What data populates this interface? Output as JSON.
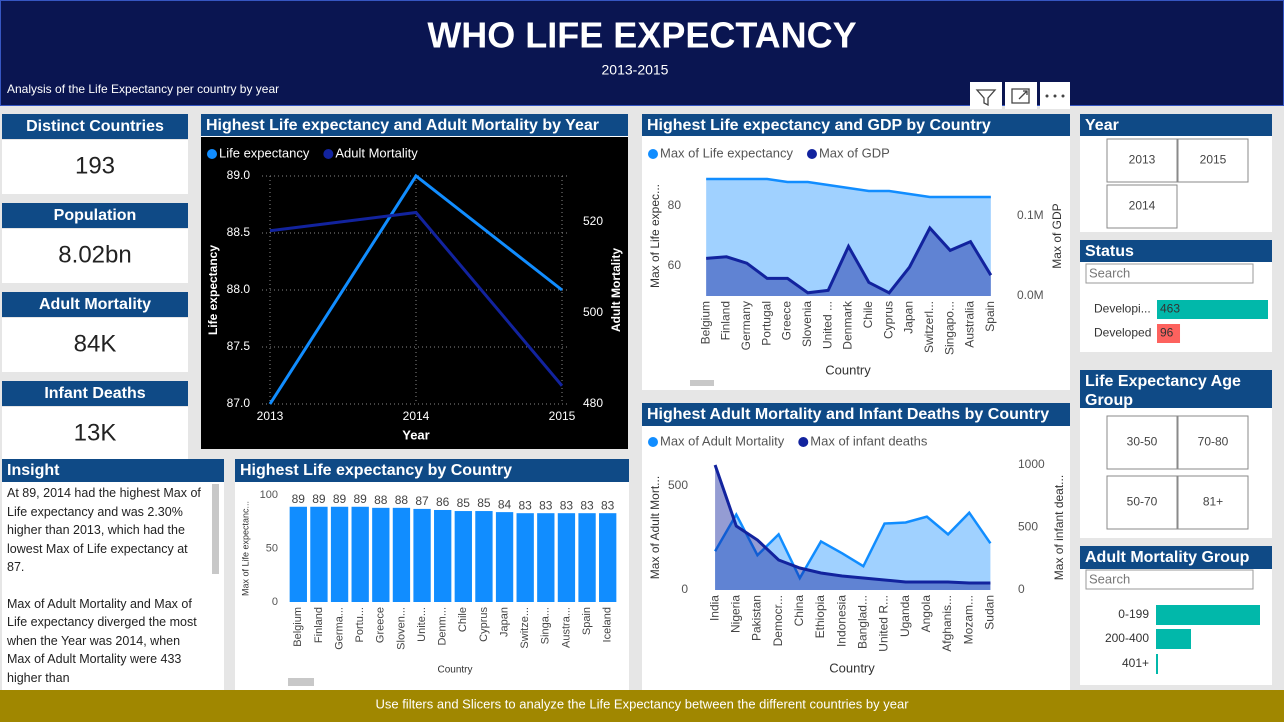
{
  "header": {
    "title": "WHO LIFE EXPECTANCY",
    "subtitle": "2013-2015",
    "description": "Analysis of the Life Expectancy per country by year"
  },
  "cards": [
    {
      "label": "Distinct Countries",
      "value": "193"
    },
    {
      "label": "Population",
      "value": "8.02bn"
    },
    {
      "label": "Adult Mortality",
      "value": "84K"
    },
    {
      "label": "Infant Deaths",
      "value": "13K"
    }
  ],
  "insight": {
    "title": "Insight",
    "paragraphs": [
      "At 89, 2014 had the highest Max of Life expectancy  and was 2.30% higher than 2013, which had the lowest Max of Life expectancy  at 87.",
      "Max of Adult Mortality and Max of Life expectancy diverged the most when the Year was 2014, when Max of Adult Mortality were 433 higher than"
    ]
  },
  "slicers": [
    {
      "title": "Year",
      "options": [
        "2013",
        "2015",
        "2014"
      ]
    },
    {
      "title": "Life Expectancy Age Group",
      "options": [
        "30-50",
        "70-80",
        "50-70",
        "81+"
      ]
    }
  ],
  "footer": "Use filters and Slicers to analyze the Life Expectancy between the different countries by year",
  "chart_data": [
    {
      "type": "line",
      "title": "Highest Life expectancy and Adult Mortality by Year",
      "categories": [
        "2013",
        "2014",
        "2015"
      ],
      "xlabel": "Year",
      "ylabel": "Life expectancy",
      "y2label": "Adult Mortality",
      "series": [
        {
          "name": "Life expectancy",
          "color": "#118dff",
          "values": [
            87.0,
            89.0,
            88.0
          ]
        },
        {
          "name": "Adult Mortality",
          "color": "#12239e",
          "axis": "y2",
          "values": [
            518,
            522,
            484
          ]
        }
      ],
      "ylim": [
        87,
        89
      ],
      "yticks": [
        {
          "value": 87,
          "label": "87.0"
        },
        {
          "value": 87.5,
          "label": "87.5"
        },
        {
          "value": 88,
          "label": "88.0"
        },
        {
          "value": 88.5,
          "label": "88.5"
        },
        {
          "value": 89,
          "label": "89.0"
        }
      ],
      "y2lim": [
        480,
        530
      ],
      "y2ticks": [
        480,
        500,
        520
      ],
      "grid": true,
      "legend": "top-left"
    },
    {
      "type": "area",
      "title": "Highest Life expectancy and GDP by Country",
      "categories": [
        "Belgium",
        "Finland",
        "Germany",
        "Portugal",
        "Greece",
        "Slovenia",
        "United ...",
        "Denmark",
        "Chile",
        "Cyprus",
        "Japan",
        "Switzerl...",
        "Singapo...",
        "Australia",
        "Spain"
      ],
      "xlabel": "Country",
      "ylabel": "Max of Life expec...",
      "y2label": "Max of GDP",
      "series": [
        {
          "name": "Max of Life expectancy",
          "color": "#118dff",
          "values": [
            89,
            89,
            89,
            89,
            88,
            88,
            87,
            86,
            85,
            85,
            84,
            83,
            83,
            83,
            83
          ]
        },
        {
          "name": "Max of GDP",
          "color": "#12239e",
          "axis": "y2",
          "values": [
            47000,
            49000,
            41000,
            22000,
            22000,
            4000,
            7000,
            62000,
            17000,
            4000,
            36000,
            85000,
            57000,
            68000,
            26000
          ]
        }
      ],
      "ylim": [
        50,
        90
      ],
      "yticks": [
        60,
        80
      ],
      "y2lim": [
        0,
        150000
      ],
      "y2ticks": [
        {
          "value": 0,
          "label": "0.0M"
        },
        {
          "value": 100000,
          "label": "0.1M"
        }
      ],
      "grid": false,
      "legend": "top-left"
    },
    {
      "type": "bar",
      "title": "Highest Life expectancy by Country",
      "categories": [
        "Belgium",
        "Finland",
        "Germa...",
        "Portu...",
        "Greece",
        "Sloven...",
        "Unite...",
        "Denm...",
        "Chile",
        "Cyprus",
        "Japan",
        "Switze...",
        "Singa...",
        "Austra...",
        "Spain",
        "Iceland"
      ],
      "values": [
        89,
        89,
        89,
        89,
        88,
        88,
        87,
        86,
        85,
        85,
        84,
        83,
        83,
        83,
        83,
        83
      ],
      "color": "#118dff",
      "xlabel": "Country",
      "ylabel": "Max of Life expectanc...",
      "ylim": [
        0,
        100
      ],
      "yticks": [
        0,
        50,
        100
      ],
      "grid": false
    },
    {
      "type": "area",
      "title": "Highest Adult Mortality and Infant Deaths by Country",
      "categories": [
        "India",
        "Nigeria",
        "Pakistan",
        "Democr...",
        "China",
        "Ethiopia",
        "Indonesia",
        "Banglad...",
        "United R...",
        "Uganda",
        "Angola",
        "Afghanis...",
        "Mozam...",
        "Sudan"
      ],
      "xlabel": "Country",
      "ylabel": "Max of Adult Mort...",
      "y2label": "Max of infant deat...",
      "series": [
        {
          "name": "Max of Adult Mortality",
          "color": "#118dff",
          "values": [
            186,
            362,
            167,
            267,
            57,
            233,
            176,
            114,
            319,
            324,
            352,
            267,
            371,
            224
          ]
        },
        {
          "name": "Max of infant deaths",
          "color": "#12239e",
          "axis": "y2",
          "values": [
            1000,
            512,
            400,
            240,
            176,
            136,
            112,
            96,
            80,
            64,
            64,
            64,
            56,
            56
          ]
        }
      ],
      "ylim": [
        0,
        600
      ],
      "yticks": [
        0,
        500
      ],
      "y2lim": [
        0,
        1000
      ],
      "y2ticks": [
        0,
        500,
        1000
      ],
      "grid": false,
      "legend": "top-left"
    },
    {
      "type": "hbar",
      "title": "Status",
      "search": "Search",
      "categories": [
        "Developi...",
        "Developed"
      ],
      "values": [
        463,
        96
      ],
      "colors": [
        "#01b8aa",
        "#fd625e"
      ],
      "data_labels": true
    },
    {
      "type": "hbar",
      "title": "Adult Mortality Group",
      "search": "Search",
      "categories": [
        "0-199",
        "200-400",
        "401+"
      ],
      "values": [
        2080,
        700,
        40
      ],
      "colors": [
        "#01b8aa",
        "#01b8aa",
        "#01b8aa"
      ],
      "data_labels": false
    }
  ]
}
